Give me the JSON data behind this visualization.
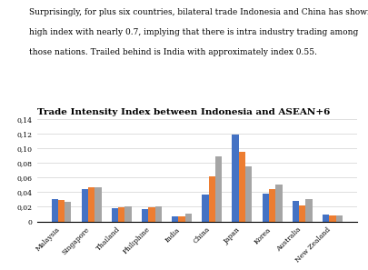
{
  "title": "Trade Intensity Index between Indonesia and ASEAN+6",
  "categories": [
    "Malaysia",
    "Singapore",
    "Thailand",
    "Philiphine",
    "India",
    "China",
    "Japan",
    "Korea",
    "Australia",
    "New Zealand"
  ],
  "series": {
    "av_TII export period 1": [
      0.03,
      0.044,
      0.018,
      0.017,
      0.007,
      0.037,
      0.118,
      0.038,
      0.028,
      0.009
    ],
    "av_TII export period 2": [
      0.029,
      0.046,
      0.019,
      0.019,
      0.007,
      0.062,
      0.095,
      0.044,
      0.022,
      0.008
    ],
    "av_TII export period 3": [
      0.027,
      0.047,
      0.021,
      0.021,
      0.01,
      0.089,
      0.075,
      0.05,
      0.031,
      0.008
    ]
  },
  "colors": {
    "av_TII export period 1": "#4472C4",
    "av_TII export period 2": "#ED7D31",
    "av_TII export period 3": "#A5A5A5"
  },
  "ylim": [
    0,
    0.14
  ],
  "yticks": [
    0,
    0.02,
    0.04,
    0.06,
    0.08,
    0.1,
    0.12,
    0.14
  ],
  "legend_fontsize": 5.5,
  "title_fontsize": 7.5,
  "tick_fontsize": 5.5,
  "bar_width": 0.22,
  "grid_color": "#D9D9D9",
  "background_color": "#FFFFFF",
  "text_lines": [
    "Surprisingly, for plus six countries, bilateral trade Indonesia and China has shown",
    "high index with nearly 0.7, implying that there is intra industry trading among",
    "those nations. Trailed behind is India with approximately index 0.55."
  ],
  "text_fontsize": 6.5
}
